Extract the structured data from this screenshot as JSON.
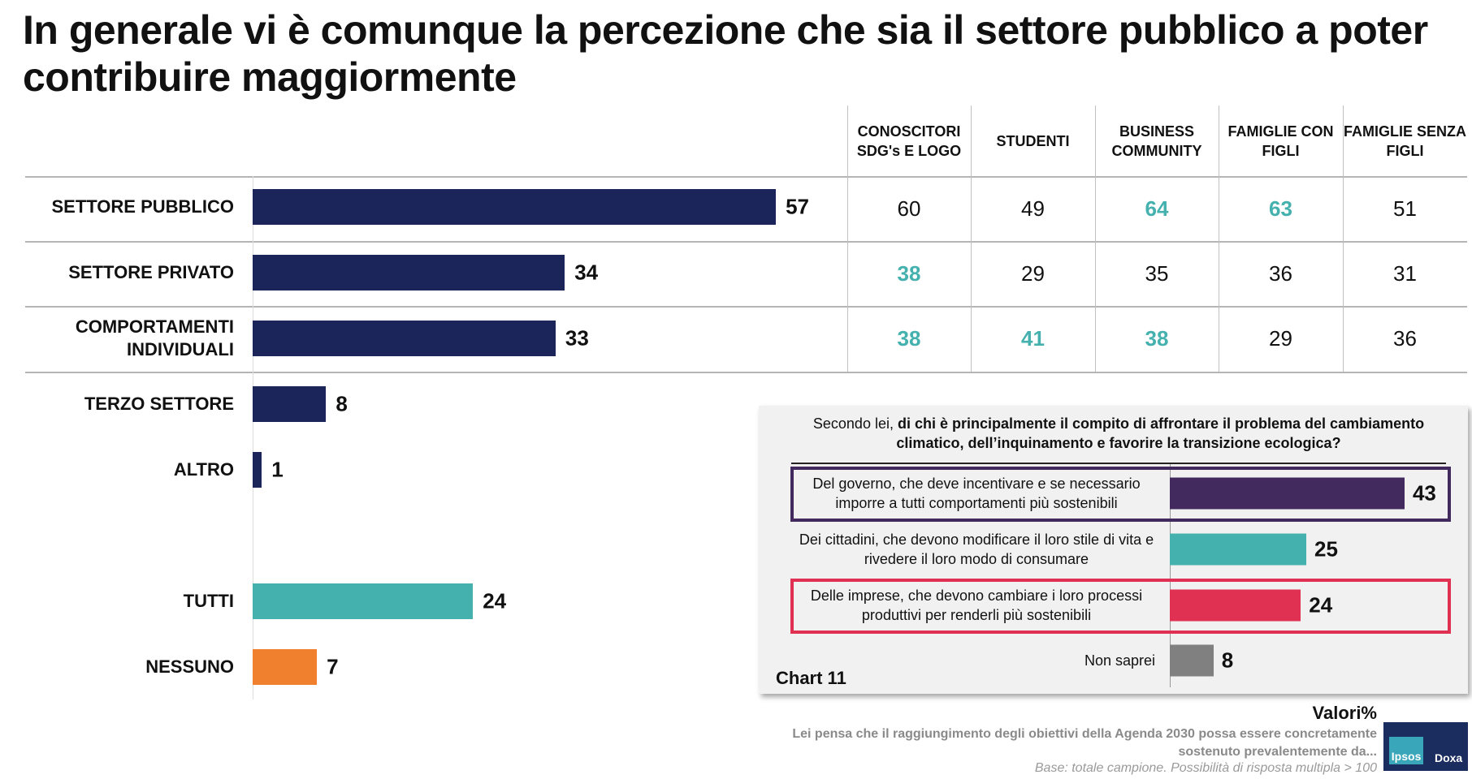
{
  "title": "In generale vi è comunque la percezione che sia il settore pubblico a poter contribuire maggiormente",
  "colors": {
    "navy": "#1b2559",
    "teal": "#45b1ae",
    "orange": "#f07f2e",
    "purple": "#42295e",
    "red": "#e03153",
    "grey": "#808080"
  },
  "chart_data": [
    {
      "type": "bar",
      "orientation": "horizontal",
      "categories": [
        "SETTORE PUBBLICO",
        "SETTORE PRIVATO",
        "COMPORTAMENTI INDIVIDUALI",
        "TERZO SETTORE",
        "ALTRO",
        "TUTTI",
        "NESSUNO"
      ],
      "values": [
        57,
        34,
        33,
        8,
        1,
        24,
        7
      ],
      "bar_colors": [
        "navy",
        "navy",
        "navy",
        "navy",
        "navy",
        "teal",
        "orange"
      ],
      "xlim": [
        0,
        100
      ]
    },
    {
      "type": "table",
      "columns": [
        "CONOSCITORI SDG's E LOGO",
        "STUDENTI",
        "BUSINESS COMMUNITY",
        "FAMIGLIE CON FIGLI",
        "FAMIGLIE SENZA FIGLI"
      ],
      "rows": [
        {
          "label": "SETTORE PUBBLICO",
          "values": [
            "60",
            "49",
            "64",
            "63",
            "51"
          ],
          "highlight": [
            false,
            false,
            true,
            true,
            false
          ]
        },
        {
          "label": "SETTORE PRIVATO",
          "values": [
            "38",
            "29",
            "35",
            "36",
            "31"
          ],
          "highlight": [
            true,
            false,
            false,
            false,
            false
          ]
        },
        {
          "label": "COMPORTAMENTI INDIVIDUALI",
          "values": [
            "38",
            "41",
            "38",
            "29",
            "36"
          ],
          "highlight": [
            true,
            true,
            true,
            false,
            false
          ]
        }
      ]
    },
    {
      "type": "bar",
      "orientation": "horizontal",
      "label": "Chart 11",
      "title_plain": "Secondo lei, ",
      "title_bold": "di chi è principalmente il compito di affrontare il problema del cambiamento climatico, dell’inquinamento e favorire la transizione ecologica?",
      "categories": [
        "Del governo, che deve incentivare e se necessario imporre a tutti comportamenti più sostenibili",
        "Dei cittadini, che devono modificare il loro stile di vita e rivedere il loro modo di consumare",
        "Delle imprese, che devono cambiare i loro processi produttivi per renderli più sostenibili",
        "Non saprei"
      ],
      "values": [
        43,
        25,
        24,
        8
      ],
      "bar_colors": [
        "purple",
        "teal",
        "red",
        "grey"
      ],
      "highlight_boxes": [
        "purple",
        "none",
        "red",
        "none"
      ],
      "xlim": [
        0,
        100
      ]
    }
  ],
  "footer": {
    "unit": "Valori%",
    "question": "Lei pensa che il raggiungimento degli obiettivi della Agenda 2030 possa essere concretamente sostenuto prevalentemente da...",
    "base": "Base: totale campione. Possibilità di risposta multipla > 100"
  },
  "logo": {
    "left": "Ipsos",
    "right": "Doxa"
  }
}
